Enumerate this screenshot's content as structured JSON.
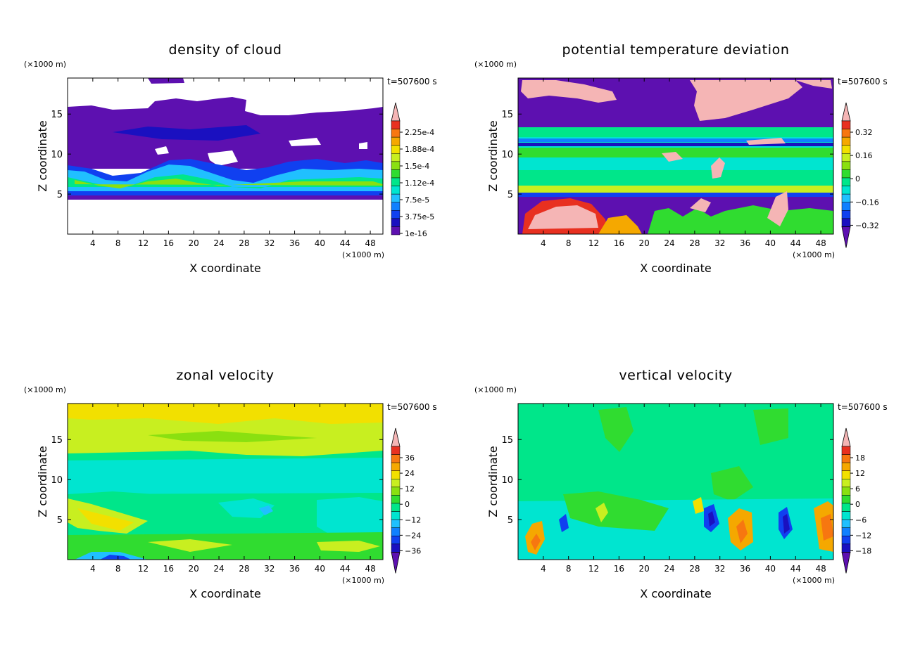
{
  "chart_data": [
    {
      "type": "heatmap",
      "title": "density of cloud",
      "xlabel": "X coordinate",
      "ylabel": "Z coordinate",
      "x_unit": "(×1000 m)",
      "y_unit": "(×1000 m)",
      "time_label": "t=507600 s",
      "xlim": [
        0,
        50
      ],
      "ylim": [
        0,
        19.5
      ],
      "xticks": [
        4,
        8,
        12,
        16,
        20,
        24,
        28,
        32,
        36,
        40,
        44,
        48
      ],
      "yticks": [
        5,
        10,
        15
      ],
      "colorbar": {
        "labels": [
          "2.25e-4",
          "1.88e-4",
          "1.5e-4",
          "1.12e-4",
          "7.5e-5",
          "3.75e-5",
          "1e-16"
        ],
        "colors": [
          "#f5b5b5",
          "#e83020",
          "#f77710",
          "#f5a800",
          "#f2e000",
          "#c8ef20",
          "#8ae010",
          "#30dc30",
          "#00e68a",
          "#00e5d0",
          "#20c0ff",
          "#1080ff",
          "#1040f0",
          "#1a10c0",
          "#5d10b0"
        ],
        "arrow_top": true,
        "arrow_bottom": false
      }
    },
    {
      "type": "heatmap",
      "title": "potential temperature deviation",
      "xlabel": "X coordinate",
      "ylabel": "Z coordinate",
      "x_unit": "(×1000 m)",
      "y_unit": "(×1000 m)",
      "time_label": "t=507600 s",
      "xlim": [
        0,
        50
      ],
      "ylim": [
        0,
        19.5
      ],
      "xticks": [
        4,
        8,
        12,
        16,
        20,
        24,
        28,
        32,
        36,
        40,
        44,
        48
      ],
      "yticks": [
        5,
        10,
        15
      ],
      "colorbar": {
        "labels": [
          "0.32",
          "0.16",
          "0",
          "−0.16",
          "−0.32"
        ],
        "colors": [
          "#f5b5b5",
          "#e83020",
          "#f77710",
          "#f5a800",
          "#f2e000",
          "#c8ef20",
          "#8ae010",
          "#30dc30",
          "#00e68a",
          "#00e5d0",
          "#20c0ff",
          "#1080ff",
          "#1040f0",
          "#1a10c0",
          "#5d10b0"
        ],
        "arrow_top": true,
        "arrow_bottom": true
      }
    },
    {
      "type": "heatmap",
      "title": "zonal velocity",
      "xlabel": "X coordinate",
      "ylabel": "Z coordinate",
      "x_unit": "(×1000 m)",
      "y_unit": "(×1000 m)",
      "time_label": "t=507600 s",
      "xlim": [
        0,
        50
      ],
      "ylim": [
        0,
        19.5
      ],
      "xticks": [
        4,
        8,
        12,
        16,
        20,
        24,
        28,
        32,
        36,
        40,
        44,
        48
      ],
      "yticks": [
        5,
        10,
        15
      ],
      "colorbar": {
        "labels": [
          "36",
          "24",
          "12",
          "0",
          "−12",
          "−24",
          "−36"
        ],
        "colors": [
          "#f5b5b5",
          "#e83020",
          "#f77710",
          "#f5a800",
          "#f2e000",
          "#c8ef20",
          "#8ae010",
          "#30dc30",
          "#00e68a",
          "#00e5d0",
          "#20c0ff",
          "#1080ff",
          "#1040f0",
          "#1a10c0",
          "#5d10b0"
        ],
        "arrow_top": true,
        "arrow_bottom": true
      }
    },
    {
      "type": "heatmap",
      "title": "vertical velocity",
      "xlabel": "X coordinate",
      "ylabel": "Z coordinate",
      "x_unit": "(×1000 m)",
      "y_unit": "(×1000 m)",
      "time_label": "t=507600 s",
      "xlim": [
        0,
        50
      ],
      "ylim": [
        0,
        19.5
      ],
      "xticks": [
        4,
        8,
        12,
        16,
        20,
        24,
        28,
        32,
        36,
        40,
        44,
        48
      ],
      "yticks": [
        5,
        10,
        15
      ],
      "colorbar": {
        "labels": [
          "18",
          "12",
          "6",
          "0",
          "−6",
          "−12",
          "−18"
        ],
        "colors": [
          "#f5b5b5",
          "#e83020",
          "#f77710",
          "#f5a800",
          "#f2e000",
          "#c8ef20",
          "#8ae010",
          "#30dc30",
          "#00e68a",
          "#00e5d0",
          "#20c0ff",
          "#1080ff",
          "#1040f0",
          "#1a10c0",
          "#5d10b0"
        ],
        "arrow_top": true,
        "arrow_bottom": true
      }
    }
  ]
}
